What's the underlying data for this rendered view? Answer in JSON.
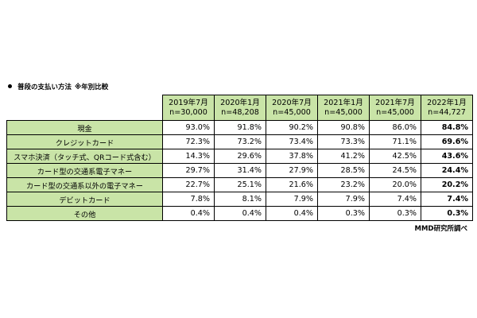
{
  "title": "普段の支払い方法",
  "title_note": "※年別比較",
  "columns": [
    {
      "period": "2019年7月",
      "n": "n=30,000"
    },
    {
      "period": "2020年1月",
      "n": "n=48,208"
    },
    {
      "period": "2020年7月",
      "n": "n=45,000"
    },
    {
      "period": "2021年1月",
      "n": "n=45,000"
    },
    {
      "period": "2021年7月",
      "n": "n=45,000"
    },
    {
      "period": "2022年1月",
      "n": "n=44,727"
    }
  ],
  "rows": [
    {
      "label": "現金",
      "values": [
        "93.0%",
        "91.8%",
        "90.2%",
        "90.8%",
        "86.0%",
        "84.8%"
      ]
    },
    {
      "label": "クレジットカード",
      "values": [
        "72.3%",
        "73.2%",
        "73.4%",
        "73.3%",
        "71.1%",
        "69.6%"
      ]
    },
    {
      "label": "スマホ決済（タッチ式、QRコード式含む）",
      "values": [
        "14.3%",
        "29.6%",
        "37.8%",
        "41.2%",
        "42.5%",
        "43.6%"
      ]
    },
    {
      "label": "カード型の交通系電子マネー",
      "values": [
        "29.7%",
        "31.4%",
        "27.9%",
        "28.5%",
        "24.5%",
        "24.4%"
      ]
    },
    {
      "label": "カード型の交通系以外の電子マネー",
      "values": [
        "22.7%",
        "25.1%",
        "21.6%",
        "23.2%",
        "20.0%",
        "20.2%"
      ]
    },
    {
      "label": "デビットカード",
      "values": [
        "7.8%",
        "8.1%",
        "7.9%",
        "7.9%",
        "7.4%",
        "7.4%"
      ]
    },
    {
      "label": "その他",
      "values": [
        "0.4%",
        "0.4%",
        "0.4%",
        "0.3%",
        "0.3%",
        "0.3%"
      ]
    }
  ],
  "source": "MMD研究所調べ",
  "colors": {
    "header_bg": "#c9e4a7"
  }
}
